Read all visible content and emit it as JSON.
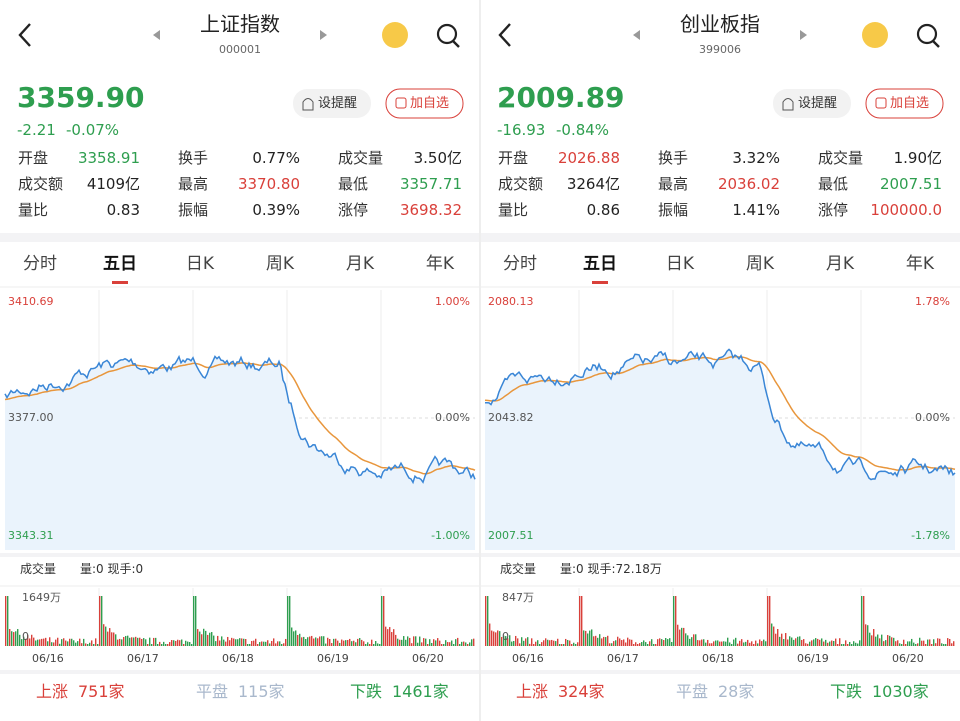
{
  "panels": [
    {
      "title": "上证指数",
      "code": "000001",
      "price": "3359.90",
      "change": "-2.21",
      "change_pct": "-0.07%",
      "remind": "设提醒",
      "add": "加自选",
      "stats": [
        [
          {
            "label": "开盘",
            "value": "3358.91",
            "color": "#2e9e4f"
          },
          {
            "label": "换手",
            "value": "0.77%",
            "color": "#222"
          },
          {
            "label": "成交量",
            "value": "3.50亿",
            "color": "#222"
          }
        ],
        [
          {
            "label": "成交额",
            "value": "4109亿",
            "color": "#222"
          },
          {
            "label": "最高",
            "value": "3370.80",
            "color": "#d9403a"
          },
          {
            "label": "最低",
            "value": "3357.71",
            "color": "#2e9e4f"
          }
        ],
        [
          {
            "label": "量比",
            "value": "0.83",
            "color": "#222"
          },
          {
            "label": "振幅",
            "value": "0.39%",
            "color": "#222"
          },
          {
            "label": "涨停",
            "value": "3698.32",
            "color": "#d9403a"
          }
        ]
      ],
      "tabs": [
        "分时",
        "五日",
        "日K",
        "周K",
        "月K",
        "年K"
      ],
      "chart": {
        "top": "3410.69",
        "mid": "3377.00",
        "bottom": "3343.31",
        "top_pct": "1.00%",
        "mid_pct": "0.00%",
        "bottom_pct": "-1.00%"
      },
      "volume": {
        "title": "成交量",
        "info": "量:0 现手:0",
        "max": "1649万",
        "zero": "0"
      },
      "dates": [
        "06/16",
        "06/17",
        "06/18",
        "06/19",
        "06/20"
      ],
      "breadth": {
        "up_label": "上涨",
        "up": "751家",
        "flat_label": "平盘",
        "flat": "115家",
        "down_label": "下跌",
        "down": "1461家"
      }
    },
    {
      "title": "创业板指",
      "code": "399006",
      "price": "2009.89",
      "change": "-16.93",
      "change_pct": "-0.84%",
      "remind": "设提醒",
      "add": "加自选",
      "stats": [
        [
          {
            "label": "开盘",
            "value": "2026.88",
            "color": "#d9403a"
          },
          {
            "label": "换手",
            "value": "3.32%",
            "color": "#222"
          },
          {
            "label": "成交量",
            "value": "1.90亿",
            "color": "#222"
          }
        ],
        [
          {
            "label": "成交额",
            "value": "3264亿",
            "color": "#222"
          },
          {
            "label": "最高",
            "value": "2036.02",
            "color": "#d9403a"
          },
          {
            "label": "最低",
            "value": "2007.51",
            "color": "#2e9e4f"
          }
        ],
        [
          {
            "label": "量比",
            "value": "0.86",
            "color": "#222"
          },
          {
            "label": "振幅",
            "value": "1.41%",
            "color": "#222"
          },
          {
            "label": "涨停",
            "value": "100000.0",
            "color": "#d9403a"
          }
        ]
      ],
      "tabs": [
        "分时",
        "五日",
        "日K",
        "周K",
        "月K",
        "年K"
      ],
      "chart": {
        "top": "2080.13",
        "mid": "2043.82",
        "bottom": "2007.51",
        "top_pct": "1.78%",
        "mid_pct": "0.00%",
        "bottom_pct": "-1.78%"
      },
      "volume": {
        "title": "成交量",
        "info": "量:0 现手:72.18万",
        "max": "847万",
        "zero": "0"
      },
      "dates": [
        "06/16",
        "06/17",
        "06/18",
        "06/19",
        "06/20"
      ],
      "breadth": {
        "up_label": "上涨",
        "up": "324家",
        "flat_label": "平盘",
        "flat": "28家",
        "down_label": "下跌",
        "down": "1030家"
      }
    }
  ]
}
